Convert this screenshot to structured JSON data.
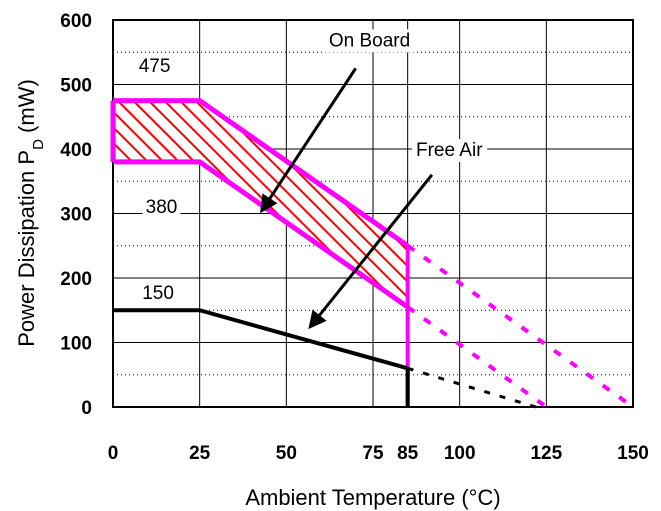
{
  "chart_data": {
    "type": "line",
    "title": "",
    "xlabel": "Ambient Temperature (°C)",
    "ylabel_main": "Power Dissipation P",
    "ylabel_sub": "D",
    "ylabel_unit": " (mW)",
    "xlim": [
      0,
      150
    ],
    "ylim": [
      0,
      600
    ],
    "x_ticks": [
      0,
      25,
      50,
      75,
      85,
      100,
      125,
      150
    ],
    "x_tick_labels": [
      "0",
      "25",
      "50",
      "75",
      "85",
      "100",
      "125",
      "150"
    ],
    "y_ticks": [
      0,
      100,
      200,
      300,
      400,
      500,
      600
    ],
    "y_tick_labels": [
      "0",
      "100",
      "200",
      "300",
      "400",
      "500",
      "600"
    ],
    "grid": true,
    "colors": {
      "on_board": "#ff00ff",
      "free_air": "#000000",
      "hatch": "#ff0000"
    },
    "series": [
      {
        "name": "On Board",
        "kind": "band",
        "upper": [
          {
            "x": 0,
            "y": 475
          },
          {
            "x": 25,
            "y": 475
          },
          {
            "x": 85,
            "y": 250
          }
        ],
        "lower": [
          {
            "x": 0,
            "y": 380
          },
          {
            "x": 25,
            "y": 380
          },
          {
            "x": 85,
            "y": 155
          }
        ],
        "upper_extrapolation": [
          {
            "x": 85,
            "y": 250
          },
          {
            "x": 150,
            "y": 0
          }
        ],
        "lower_extrapolation": [
          {
            "x": 85,
            "y": 155
          },
          {
            "x": 125,
            "y": 0
          }
        ],
        "cutoff": [
          {
            "x": 85,
            "y": 250
          },
          {
            "x": 85,
            "y": 0
          }
        ]
      },
      {
        "name": "Free Air",
        "kind": "line",
        "points": [
          {
            "x": 0,
            "y": 150
          },
          {
            "x": 25,
            "y": 150
          },
          {
            "x": 85,
            "y": 60
          }
        ],
        "extrapolation": [
          {
            "x": 85,
            "y": 60
          },
          {
            "x": 122,
            "y": 0
          }
        ],
        "cutoff": [
          {
            "x": 85,
            "y": 60
          },
          {
            "x": 85,
            "y": 0
          }
        ]
      }
    ],
    "value_labels": [
      {
        "text": "475",
        "x": 12,
        "y": 530
      },
      {
        "text": "380",
        "x": 14,
        "y": 312
      },
      {
        "text": "150",
        "x": 13,
        "y": 178
      }
    ],
    "annotations": [
      {
        "text": "On Board",
        "x": 74,
        "y": 570,
        "arrow_from": {
          "x": 70,
          "y": 525
        },
        "arrow_to": {
          "x": 43,
          "y": 305
        }
      },
      {
        "text": "Free Air",
        "x": 97,
        "y": 400,
        "arrow_from": {
          "x": 92,
          "y": 360
        },
        "arrow_to": {
          "x": 57,
          "y": 125
        }
      }
    ]
  }
}
